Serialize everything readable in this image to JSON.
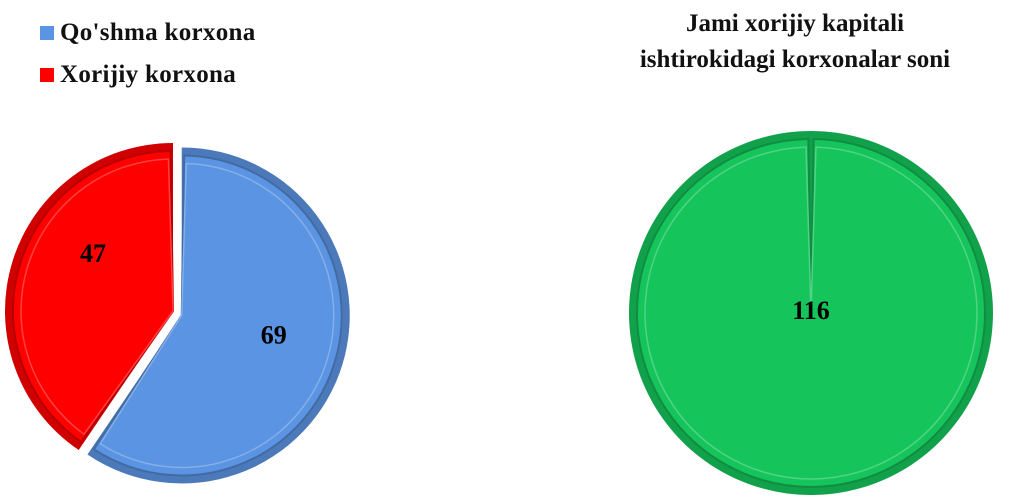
{
  "chart_data": [
    {
      "type": "pie",
      "legend": {
        "placement": "top-left"
      },
      "slices": [
        {
          "name": "Qo'shma korxona",
          "value": 69,
          "label": "69",
          "color": "#5b94e2"
        },
        {
          "name": "Xorijiy korxona",
          "value": 47,
          "label": "47",
          "color": "#ff0000"
        }
      ]
    },
    {
      "type": "pie",
      "title_lines": [
        "Jami xorijiy kapitali",
        "ishtirokidagi korxonalar soni"
      ],
      "slices": [
        {
          "name": "",
          "value": 116,
          "label": "116",
          "color": "#16c45c"
        }
      ]
    }
  ]
}
